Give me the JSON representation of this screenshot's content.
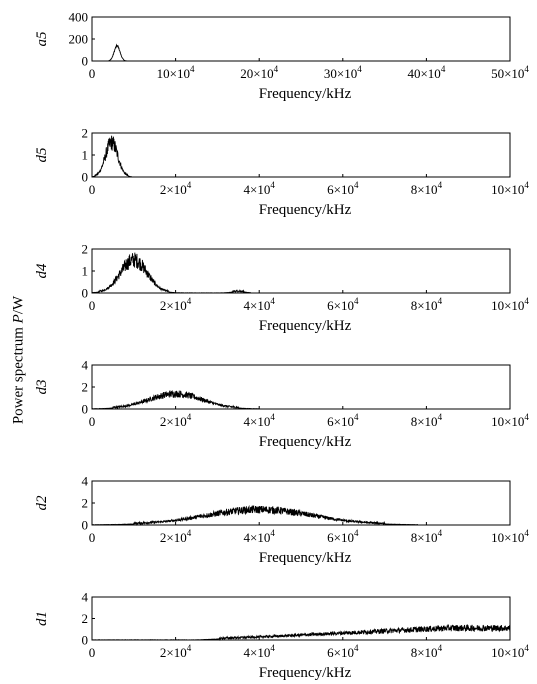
{
  "chart_data": {
    "type": "area",
    "ylabel": {
      "prefix": "Power  spectrum  ",
      "var": "P",
      "suffix": "/W"
    },
    "color": "#000000",
    "panels": [
      {
        "name": "a5",
        "xlabel": "Frequency/kHz",
        "xlim": [
          0,
          500000
        ],
        "ylim": [
          0,
          400
        ],
        "xticks": [
          0,
          100000,
          200000,
          300000,
          400000,
          500000
        ],
        "xtick_labels": [
          {
            "base": "0",
            "exp": ""
          },
          {
            "base": "10×10",
            "exp": "4"
          },
          {
            "base": "20×10",
            "exp": "4"
          },
          {
            "base": "30×10",
            "exp": "4"
          },
          {
            "base": "40×10",
            "exp": "4"
          },
          {
            "base": "50×10",
            "exp": "4"
          }
        ],
        "yticks": [
          0,
          200,
          400
        ],
        "ytick_labels": [
          "0",
          "200",
          "400"
        ],
        "spectrum": {
          "peaks": [
            {
              "x": 30000,
              "width": 3500,
              "amp": 130
            }
          ],
          "noise": 20,
          "floor": 0,
          "x_end": 50000
        }
      },
      {
        "name": "d5",
        "xlabel": "Frequency/kHz",
        "xlim": [
          0,
          100000
        ],
        "ylim": [
          0,
          2
        ],
        "xticks": [
          0,
          20000,
          40000,
          60000,
          80000,
          100000
        ],
        "xtick_labels": [
          {
            "base": "0",
            "exp": ""
          },
          {
            "base": "2×10",
            "exp": "4"
          },
          {
            "base": "4×10",
            "exp": "4"
          },
          {
            "base": "6×10",
            "exp": "4"
          },
          {
            "base": "8×10",
            "exp": "4"
          },
          {
            "base": "10×10",
            "exp": "4"
          }
        ],
        "yticks": [
          0,
          1,
          2
        ],
        "ytick_labels": [
          "0",
          "1",
          "2"
        ],
        "spectrum": {
          "peaks": [
            {
              "x": 4700,
              "width": 1500,
              "amp": 1.3
            }
          ],
          "noise": 0.35,
          "floor": 0,
          "x_end": 9500
        }
      },
      {
        "name": "d4",
        "xlabel": "Frequency/kHz",
        "xlim": [
          0,
          100000
        ],
        "ylim": [
          0,
          2
        ],
        "xticks": [
          0,
          20000,
          40000,
          60000,
          80000,
          100000
        ],
        "xtick_labels": [
          {
            "base": "0",
            "exp": ""
          },
          {
            "base": "2×10",
            "exp": "4"
          },
          {
            "base": "4×10",
            "exp": "4"
          },
          {
            "base": "6×10",
            "exp": "4"
          },
          {
            "base": "8×10",
            "exp": "4"
          },
          {
            "base": "10×10",
            "exp": "4"
          }
        ],
        "yticks": [
          0,
          1,
          2
        ],
        "ytick_labels": [
          "0",
          "1",
          "2"
        ],
        "spectrum": {
          "peaks": [
            {
              "x": 10000,
              "width": 3200,
              "amp": 1.25
            },
            {
              "x": 35000,
              "width": 1500,
              "amp": 0.06
            }
          ],
          "noise": 0.35,
          "floor": 0,
          "x_end": 38000
        }
      },
      {
        "name": "d3",
        "xlabel": "Frequency/kHz",
        "xlim": [
          0,
          100000
        ],
        "ylim": [
          0,
          4
        ],
        "xticks": [
          0,
          20000,
          40000,
          60000,
          80000,
          100000
        ],
        "xtick_labels": [
          {
            "base": "0",
            "exp": ""
          },
          {
            "base": "2×10",
            "exp": "4"
          },
          {
            "base": "4×10",
            "exp": "4"
          },
          {
            "base": "6×10",
            "exp": "4"
          },
          {
            "base": "8×10",
            "exp": "4"
          },
          {
            "base": "10×10",
            "exp": "4"
          }
        ],
        "yticks": [
          0,
          2,
          4
        ],
        "ytick_labels": [
          "0",
          "2",
          "4"
        ],
        "spectrum": {
          "peaks": [
            {
              "x": 20000,
              "width": 6500,
              "amp": 1.15
            }
          ],
          "noise": 0.7,
          "floor": 0,
          "x_end": 40000
        }
      },
      {
        "name": "d2",
        "xlabel": "Frequency/kHz",
        "xlim": [
          0,
          100000
        ],
        "ylim": [
          0,
          4
        ],
        "xticks": [
          0,
          20000,
          40000,
          60000,
          80000,
          100000
        ],
        "xtick_labels": [
          {
            "base": "0",
            "exp": ""
          },
          {
            "base": "2×10",
            "exp": "4"
          },
          {
            "base": "4×10",
            "exp": "4"
          },
          {
            "base": "6×10",
            "exp": "4"
          },
          {
            "base": "8×10",
            "exp": "4"
          },
          {
            "base": "10×10",
            "exp": "4"
          }
        ],
        "yticks": [
          0,
          2,
          4
        ],
        "ytick_labels": [
          "0",
          "2",
          "4"
        ],
        "spectrum": {
          "peaks": [
            {
              "x": 40000,
              "width": 13000,
              "amp": 1.15
            }
          ],
          "noise": 0.75,
          "floor": 0,
          "x_end": 78000
        }
      },
      {
        "name": "d1",
        "xlabel": "Frequency/kHz",
        "xlim": [
          0,
          100000
        ],
        "ylim": [
          0,
          4
        ],
        "xticks": [
          0,
          20000,
          40000,
          60000,
          80000,
          100000
        ],
        "xtick_labels": [
          {
            "base": "0",
            "exp": ""
          },
          {
            "base": "2×10",
            "exp": "4"
          },
          {
            "base": "4×10",
            "exp": "4"
          },
          {
            "base": "6×10",
            "exp": "4"
          },
          {
            "base": "8×10",
            "exp": "4"
          },
          {
            "base": "10×10",
            "exp": "4"
          }
        ],
        "yticks": [
          0,
          2,
          4
        ],
        "ytick_labels": [
          "0",
          "2",
          "4"
        ],
        "spectrum": {
          "ramp": {
            "x0": 25000,
            "x1": 85000,
            "amp": 0.9
          },
          "noise": 0.8,
          "floor": 0,
          "x_end": 100000
        }
      }
    ]
  }
}
